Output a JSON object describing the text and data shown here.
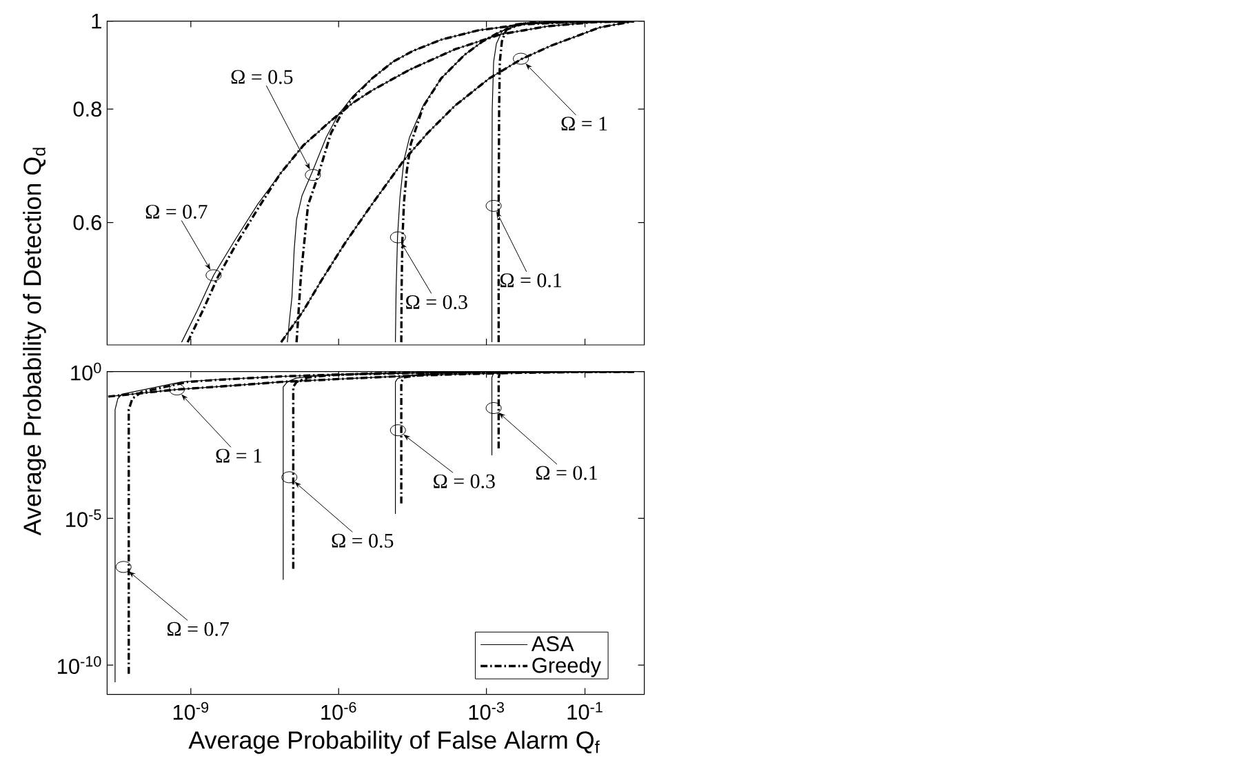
{
  "chart_data": [
    {
      "type": "line",
      "ylabel": "Average Probability of Detection Q$_{d}$",
      "log": "xy",
      "xlim": [
        2e-11,
        1.6
      ],
      "ylim": [
        0.44,
        1
      ],
      "xticks": [
        {
          "value": 1e-09,
          "label": null
        },
        {
          "value": 1e-06,
          "label": null
        },
        {
          "value": 0.001,
          "label": null
        },
        {
          "value": 0.1,
          "label": null
        }
      ],
      "yticks": [
        0.6,
        0.8,
        1
      ],
      "tick_labels": "y",
      "series": [
        {
          "color": "#000000",
          "line_style": "solid",
          "x": [
            0.00129,
            0.00129,
            0.00131,
            0.0014,
            0.00159,
            0.00206,
            0.003,
            0.008,
            0.076,
            1
          ],
          "values": [
            0.443,
            0.627,
            0.8,
            0.902,
            0.944,
            0.974,
            0.989,
            0.996,
            0.999,
            1
          ]
        },
        {
          "color": "#000000",
          "line_style": "dashdot",
          "x": [
            0.00177,
            0.00177,
            0.00181,
            0.00187,
            0.00206,
            0.0025,
            0.0037,
            0.0091,
            0.076,
            1
          ],
          "values": [
            0.443,
            0.627,
            0.8,
            0.902,
            0.95,
            0.977,
            0.991,
            0.997,
            0.999,
            1
          ]
        },
        {
          "color": "#000000",
          "line_style": "solid",
          "x": [
            1.42e-05,
            1.47e-05,
            1.57e-05,
            1.75e-05,
            2.12e-05,
            2.75e-05,
            5.2e-05,
            0.000121,
            0.00036,
            0.00084,
            0.00193,
            0.0058,
            0.076,
            1
          ],
          "values": [
            0.443,
            0.509,
            0.579,
            0.638,
            0.703,
            0.745,
            0.807,
            0.865,
            0.918,
            0.95,
            0.974,
            0.994,
            0.999,
            1
          ]
        },
        {
          "color": "#000000",
          "line_style": "dashdot",
          "x": [
            1.87e-05,
            1.9e-05,
            1.97e-05,
            2.12e-05,
            2.42e-05,
            2.93e-05,
            5.2e-05,
            0.000121,
            0.00036,
            0.00084,
            0.00193,
            0.0058,
            0.076,
            1
          ],
          "values": [
            0.443,
            0.509,
            0.575,
            0.631,
            0.684,
            0.733,
            0.805,
            0.865,
            0.918,
            0.95,
            0.974,
            0.994,
            0.999,
            1
          ]
        },
        {
          "color": "#000000",
          "line_style": "solid",
          "x": [
            9.1e-08,
            1.01e-07,
            1.13e-07,
            1.25e-07,
            1.4e-07,
            1.8e-07,
            2.97e-07,
            5.6e-07,
            9.7e-07,
            1.96e-06,
            4.8e-06,
            1.27e-05,
            3.33e-05,
            0.000121,
            0.00069,
            0.0058,
            0.0625,
            1
          ],
          "values": [
            0.443,
            0.47,
            0.497,
            0.559,
            0.605,
            0.642,
            0.684,
            0.745,
            0.788,
            0.827,
            0.865,
            0.902,
            0.928,
            0.954,
            0.977,
            0.992,
            0.998,
            1
          ]
        },
        {
          "color": "#000000",
          "line_style": "dashdot",
          "x": [
            1.4e-07,
            1.73e-07,
            2.15e-07,
            2.39e-07,
            3.7e-07,
            7e-07,
            1.17e-06,
            1.96e-06,
            4.8e-06,
            1.27e-05,
            3.33e-05,
            0.000121,
            0.00069,
            0.0058,
            0.0625,
            1
          ],
          "values": [
            0.443,
            0.527,
            0.592,
            0.627,
            0.672,
            0.753,
            0.793,
            0.824,
            0.865,
            0.902,
            0.928,
            0.954,
            0.977,
            0.992,
            0.998,
            1
          ]
        },
        {
          "color": "#000000",
          "line_style": "solid",
          "x": [
            6.5e-10,
            1.35e-09,
            2.9e-09,
            7.7e-09,
            2.3e-08,
            6.5e-08,
            1.93e-07,
            7e-07,
            1.96e-06,
            4.8e-06,
            2.75e-05,
            0.00023,
            0.00193,
            0.0172,
            0.144,
            1
          ],
          "values": [
            0.443,
            0.48,
            0.525,
            0.573,
            0.629,
            0.679,
            0.73,
            0.777,
            0.813,
            0.839,
            0.884,
            0.931,
            0.967,
            0.987,
            0.997,
            1
          ]
        },
        {
          "color": "#000000",
          "line_style": "dashdot",
          "x": [
            8.6e-10,
            1.75e-09,
            3.56e-09,
            8.8e-09,
            2.45e-08,
            6.5e-08,
            1.93e-07,
            7e-07,
            1.96e-06,
            4.8e-06,
            2.75e-05,
            0.00023,
            0.00193,
            0.0172,
            0.144,
            1
          ],
          "values": [
            0.443,
            0.48,
            0.523,
            0.571,
            0.625,
            0.679,
            0.73,
            0.777,
            0.813,
            0.839,
            0.884,
            0.931,
            0.967,
            0.987,
            0.997,
            1
          ]
        },
        {
          "color": "#000000",
          "line_style": "solid",
          "x": [
            6.8e-08,
            1.93e-07,
            4.46e-07,
            1.33e-06,
            4.8e-06,
            2.12e-05,
            6.4e-05,
            0.00023,
            0.00115,
            0.0051,
            0.0209,
            0.0625,
            0.199,
            1
          ],
          "values": [
            0.443,
            0.48,
            0.518,
            0.569,
            0.629,
            0.703,
            0.753,
            0.807,
            0.865,
            0.908,
            0.94,
            0.961,
            0.984,
            1
          ]
        },
        {
          "color": "#000000",
          "line_style": "dashdot",
          "x": [
            6.8e-08,
            1.93e-07,
            4.46e-07,
            1.33e-06,
            4.8e-06,
            2.12e-05,
            6.4e-05,
            0.00023,
            0.00115,
            0.0051,
            0.0209,
            0.0625,
            0.199,
            1
          ],
          "values": [
            0.443,
            0.48,
            0.518,
            0.569,
            0.629,
            0.703,
            0.753,
            0.807,
            0.865,
            0.908,
            0.94,
            0.961,
            0.984,
            1
          ]
        }
      ],
      "annotations": [
        {
          "text": "Ω = 0.7",
          "x": 2.9e-09,
          "y": 0.525
        },
        {
          "text": "Ω = 0.5",
          "x": 3e-07,
          "y": 0.677
        },
        {
          "text": "Ω = 1",
          "x": 0.005,
          "y": 0.909
        },
        {
          "text": "Ω = 0.3",
          "x": 1.6e-05,
          "y": 0.578
        },
        {
          "text": "Ω = 0.1",
          "x": 0.0014,
          "y": 0.626
        }
      ]
    },
    {
      "type": "line",
      "xlabel": "Average Probability of False Alarm Q$_{f}$",
      "log": "xy",
      "xlim": [
        2e-11,
        1.6
      ],
      "ylim": [
        1e-11,
        1
      ],
      "xticks": [
        {
          "value": 1e-09,
          "label": "10$^{-9}$"
        },
        {
          "value": 1e-06,
          "label": "10$^{-6}$"
        },
        {
          "value": 0.001,
          "label": "10$^{-3}$"
        },
        {
          "value": 0.1,
          "label": "10$^{-1}$"
        }
      ],
      "yticks": [
        {
          "value": 1e-10,
          "label": "10$^{-10}$"
        },
        {
          "value": 1e-05,
          "label": "10$^{-5}$"
        },
        {
          "value": 1,
          "label": "10$^{0}$"
        }
      ],
      "legend": "bottom right",
      "series": [
        {
          "name": "ASA",
          "color": "#000000",
          "line_style": "solid",
          "x": [
            0.00129,
            0.00129,
            0.0014,
            0.003,
            0.076,
            1
          ],
          "values": [
            0.0014,
            0.627,
            0.902,
            0.989,
            0.999,
            1
          ]
        },
        {
          "name": "Greedy",
          "color": "#000000",
          "line_style": "dashdot",
          "x": [
            0.00177,
            0.00177,
            0.00187,
            0.0037,
            0.076,
            1
          ],
          "values": [
            0.0024,
            0.627,
            0.902,
            0.991,
            0.999,
            1
          ]
        },
        {
          "color": "#000000",
          "line_style": "solid",
          "x": [
            1.42e-05,
            1.42e-05,
            1.57e-05,
            2.75e-05,
            0.000121,
            0.00084,
            0.0058,
            1
          ],
          "values": [
            1.4e-05,
            0.443,
            0.579,
            0.745,
            0.865,
            0.95,
            0.994,
            1
          ]
        },
        {
          "color": "#000000",
          "line_style": "dashdot",
          "x": [
            1.87e-05,
            1.87e-05,
            2.12e-05,
            5.2e-05,
            0.000121,
            0.00084,
            0.0058,
            1
          ],
          "values": [
            3.2e-05,
            0.443,
            0.631,
            0.805,
            0.865,
            0.95,
            0.994,
            1
          ]
        },
        {
          "color": "#000000",
          "line_style": "solid",
          "x": [
            7.5e-08,
            7.5e-08,
            9.1e-08,
            1.4e-07,
            2.97e-07,
            9.7e-07,
            4.8e-06,
            3.33e-05,
            0.00069,
            1
          ],
          "values": [
            8e-08,
            0.3,
            0.443,
            0.605,
            0.684,
            0.788,
            0.865,
            0.928,
            0.977,
            1
          ]
        },
        {
          "color": "#000000",
          "line_style": "dashdot",
          "x": [
            1.2e-07,
            1.2e-07,
            1.4e-07,
            2.39e-07,
            7e-07,
            4.8e-06,
            3.33e-05,
            0.00069,
            1
          ],
          "values": [
            1.9e-07,
            0.3,
            0.443,
            0.627,
            0.753,
            0.865,
            0.928,
            0.977,
            1
          ]
        },
        {
          "color": "#000000",
          "line_style": "solid",
          "x": [
            2.9e-11,
            2.9e-11,
            3.3e-11,
            4e-11,
            6.5e-10,
            2.9e-09,
            6.5e-08,
            7e-07,
            2.75e-05,
            0.00193,
            1
          ],
          "values": [
            2.6e-11,
            0.05,
            0.12,
            0.17,
            0.443,
            0.525,
            0.679,
            0.777,
            0.884,
            0.967,
            1
          ]
        },
        {
          "color": "#000000",
          "line_style": "dashdot",
          "x": [
            5.5e-11,
            5.5e-11,
            6.5e-11,
            1e-10,
            8.6e-10,
            3.56e-09,
            6.5e-08,
            7e-07,
            2.75e-05,
            0.00193,
            1
          ],
          "values": [
            5e-11,
            0.05,
            0.12,
            0.2,
            0.443,
            0.523,
            0.679,
            0.777,
            0.884,
            0.967,
            1
          ]
        },
        {
          "color": "#000000",
          "line_style": "solid",
          "x": [
            2.1e-11,
            5.2e-10,
            6.6e-09,
            6.8e-08,
            1.33e-06,
            2.12e-05,
            0.00023,
            0.0051,
            0.0625,
            1
          ],
          "values": [
            0.14,
            0.245,
            0.33,
            0.443,
            0.569,
            0.703,
            0.807,
            0.908,
            0.961,
            1
          ]
        },
        {
          "color": "#000000",
          "line_style": "dashdot",
          "x": [
            2.1e-11,
            5.2e-10,
            6.6e-09,
            6.8e-08,
            1.33e-06,
            2.12e-05,
            0.00023,
            0.0051,
            0.0625,
            1
          ],
          "values": [
            0.14,
            0.245,
            0.33,
            0.443,
            0.569,
            0.703,
            0.807,
            0.908,
            0.961,
            1
          ]
        }
      ],
      "annotations": [
        {
          "text": "Ω = 1",
          "x": 5.2e-10,
          "y": 0.245
        },
        {
          "text": "Ω = 0.7",
          "x": 4.3e-11,
          "y": 2.2e-07
        },
        {
          "text": "Ω = 0.5",
          "x": 1e-07,
          "y": 0.00025
        },
        {
          "text": "Ω = 0.3",
          "x": 1.6e-05,
          "y": 0.01
        },
        {
          "text": "Ω = 0.1",
          "x": 0.0014,
          "y": 0.057
        }
      ]
    }
  ]
}
